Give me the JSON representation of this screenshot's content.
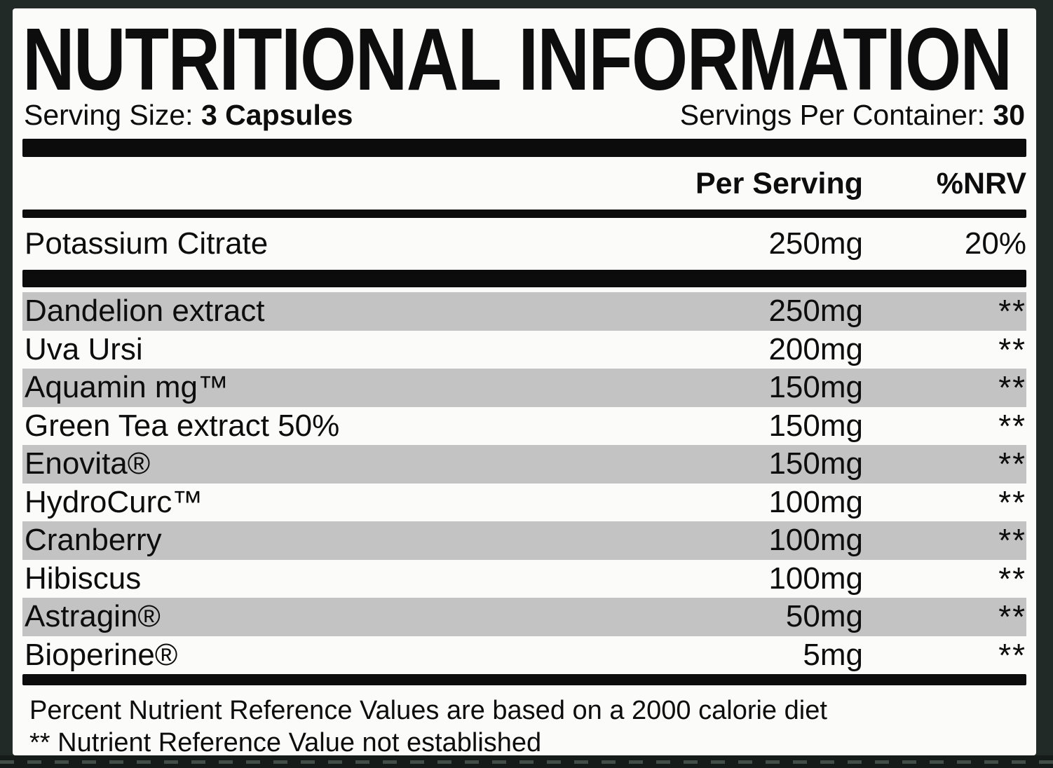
{
  "title": "NUTRITIONAL INFORMATION",
  "serving": {
    "size_label": "Serving Size:",
    "size_value": "3 Capsules",
    "per_container_label": "Servings Per Container:",
    "per_container_value": "30"
  },
  "columns": {
    "per_serving": "Per Serving",
    "nrv": "%NRV"
  },
  "highlight_row": {
    "name": "Potassium Citrate",
    "amount": "250mg",
    "nrv": "20%"
  },
  "rows": [
    {
      "name": "Dandelion extract",
      "amount": "250mg",
      "nrv": "**"
    },
    {
      "name": "Uva Ursi",
      "amount": "200mg",
      "nrv": "**"
    },
    {
      "name": "Aquamin mg™",
      "amount": "150mg",
      "nrv": "**"
    },
    {
      "name": "Green Tea extract 50%",
      "amount": "150mg",
      "nrv": "**"
    },
    {
      "name": "Enovita®",
      "amount": "150mg",
      "nrv": "**"
    },
    {
      "name": "HydroCurc™",
      "amount": "100mg",
      "nrv": "**"
    },
    {
      "name": "Cranberry",
      "amount": "100mg",
      "nrv": "**"
    },
    {
      "name": "Hibiscus",
      "amount": "100mg",
      "nrv": "**"
    },
    {
      "name": "Astragin®",
      "amount": "50mg",
      "nrv": "**"
    },
    {
      "name": "Bioperine®",
      "amount": "5mg",
      "nrv": "**"
    }
  ],
  "footnotes": [
    "Percent Nutrient Reference Values are based on a 2000 calorie diet",
    "** Nutrient Reference Value not established"
  ],
  "colors": {
    "background": "#222a27",
    "label": "#fbfbfa",
    "row_shade": "#c3c3c4",
    "ink": "#0c0c0c",
    "perforation_dash": "#434d48"
  }
}
